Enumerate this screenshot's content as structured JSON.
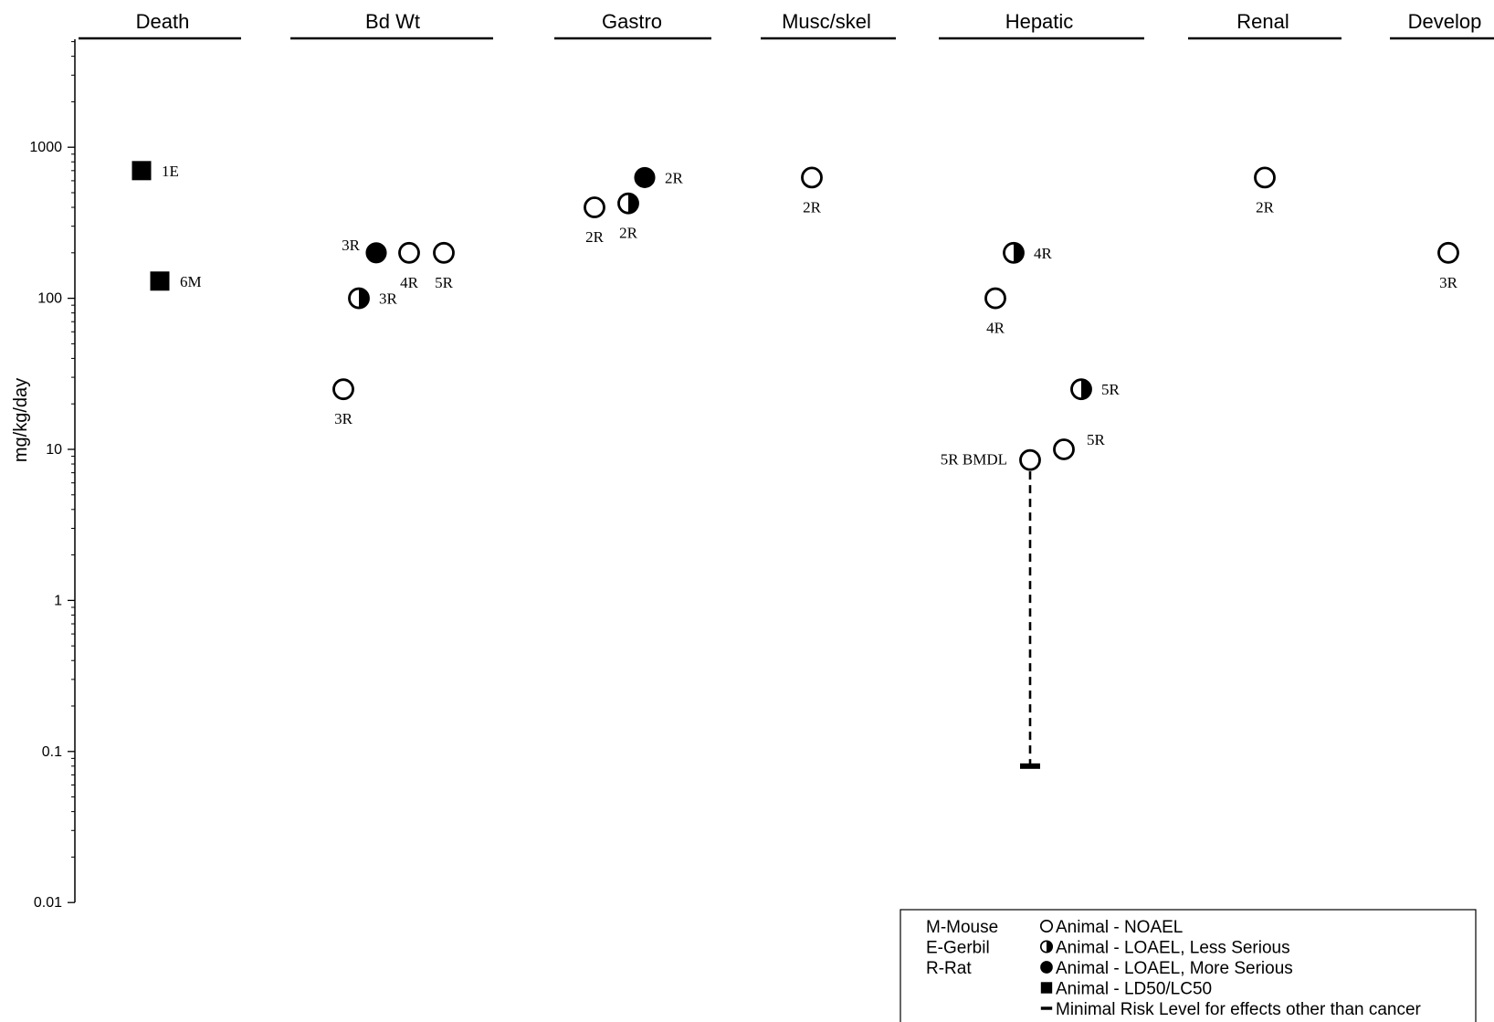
{
  "chart_data": {
    "type": "scatter",
    "ylabel": "mg/kg/day",
    "yscale": "log",
    "ylim": [
      0.01,
      5000
    ],
    "yticks": [
      {
        "value": 1000,
        "label": "1000"
      },
      {
        "value": 100,
        "label": "100"
      },
      {
        "value": 10,
        "label": "10"
      },
      {
        "value": 1,
        "label": "1"
      },
      {
        "value": 0.1,
        "label": "0.1"
      },
      {
        "value": 0.01,
        "label": "0.01"
      }
    ],
    "categories": [
      "Death",
      "Bd Wt",
      "Gastro",
      "Musc/skel",
      "Hepatic",
      "Renal",
      "Develop"
    ],
    "points": [
      {
        "category": "Death",
        "slot": 0,
        "value": 700,
        "type": "ld50",
        "label": "1E",
        "label_pos": "right"
      },
      {
        "category": "Death",
        "slot": 1,
        "value": 130,
        "type": "ld50",
        "label": "6M",
        "label_pos": "right"
      },
      {
        "category": "Bd Wt",
        "slot": 0,
        "value": 25,
        "type": "noael",
        "label": "3R",
        "label_pos": "below"
      },
      {
        "category": "Bd Wt",
        "slot": 1,
        "value": 100,
        "type": "loael_less",
        "label": "3R",
        "label_pos": "right"
      },
      {
        "category": "Bd Wt",
        "slot": 2,
        "value": 200,
        "type": "loael_more",
        "label": "3R",
        "label_pos": "upper-left"
      },
      {
        "category": "Bd Wt",
        "slot": 3,
        "value": 200,
        "type": "noael",
        "label": "4R",
        "label_pos": "below"
      },
      {
        "category": "Bd Wt",
        "slot": 4,
        "value": 200,
        "type": "noael",
        "label": "5R",
        "label_pos": "below"
      },
      {
        "category": "Gastro",
        "slot": 0,
        "value": 400,
        "type": "noael",
        "label": "2R",
        "label_pos": "below"
      },
      {
        "category": "Gastro",
        "slot": 1,
        "value": 425,
        "type": "loael_less",
        "label": "2R",
        "label_pos": "below"
      },
      {
        "category": "Gastro",
        "slot": 2,
        "value": 630,
        "type": "loael_more",
        "label": "2R",
        "label_pos": "right"
      },
      {
        "category": "Musc/skel",
        "slot": 0,
        "value": 630,
        "type": "noael",
        "label": "2R",
        "label_pos": "below"
      },
      {
        "category": "Hepatic",
        "slot": 0,
        "value": 100,
        "type": "noael",
        "label": "4R",
        "label_pos": "below"
      },
      {
        "category": "Hepatic",
        "slot": 1,
        "value": 200,
        "type": "loael_less",
        "label": "4R",
        "label_pos": "right"
      },
      {
        "category": "Hepatic",
        "slot": 2,
        "value": 8.5,
        "type": "noael",
        "label": "5R BMDL",
        "label_pos": "left"
      },
      {
        "category": "Hepatic",
        "slot": 3,
        "value": 10,
        "type": "noael",
        "label": "5R",
        "label_pos": "upper-right"
      },
      {
        "category": "Hepatic",
        "slot": 4,
        "value": 25,
        "type": "loael_less",
        "label": "5R",
        "label_pos": "right"
      },
      {
        "category": "Renal",
        "slot": 0,
        "value": 630,
        "type": "noael",
        "label": "2R",
        "label_pos": "below"
      },
      {
        "category": "Develop",
        "slot": 0,
        "value": 200,
        "type": "noael",
        "label": "3R",
        "label_pos": "below"
      }
    ],
    "mrl": {
      "category": "Hepatic",
      "slot": 2,
      "from": 8.5,
      "value": 0.08
    },
    "legend": {
      "placement": "bottom-right",
      "species": [
        "M-Mouse",
        "E-Gerbil",
        "R-Rat"
      ],
      "symbols": [
        {
          "type": "noael",
          "label": "Animal - NOAEL"
        },
        {
          "type": "loael_less",
          "label": "Animal - LOAEL, Less Serious"
        },
        {
          "type": "loael_more",
          "label": "Animal - LOAEL, More Serious"
        },
        {
          "type": "ld50",
          "label": "Animal - LD50/LC50"
        },
        {
          "type": "mrl",
          "label": "Minimal Risk Level for effects other than cancer"
        }
      ]
    }
  }
}
